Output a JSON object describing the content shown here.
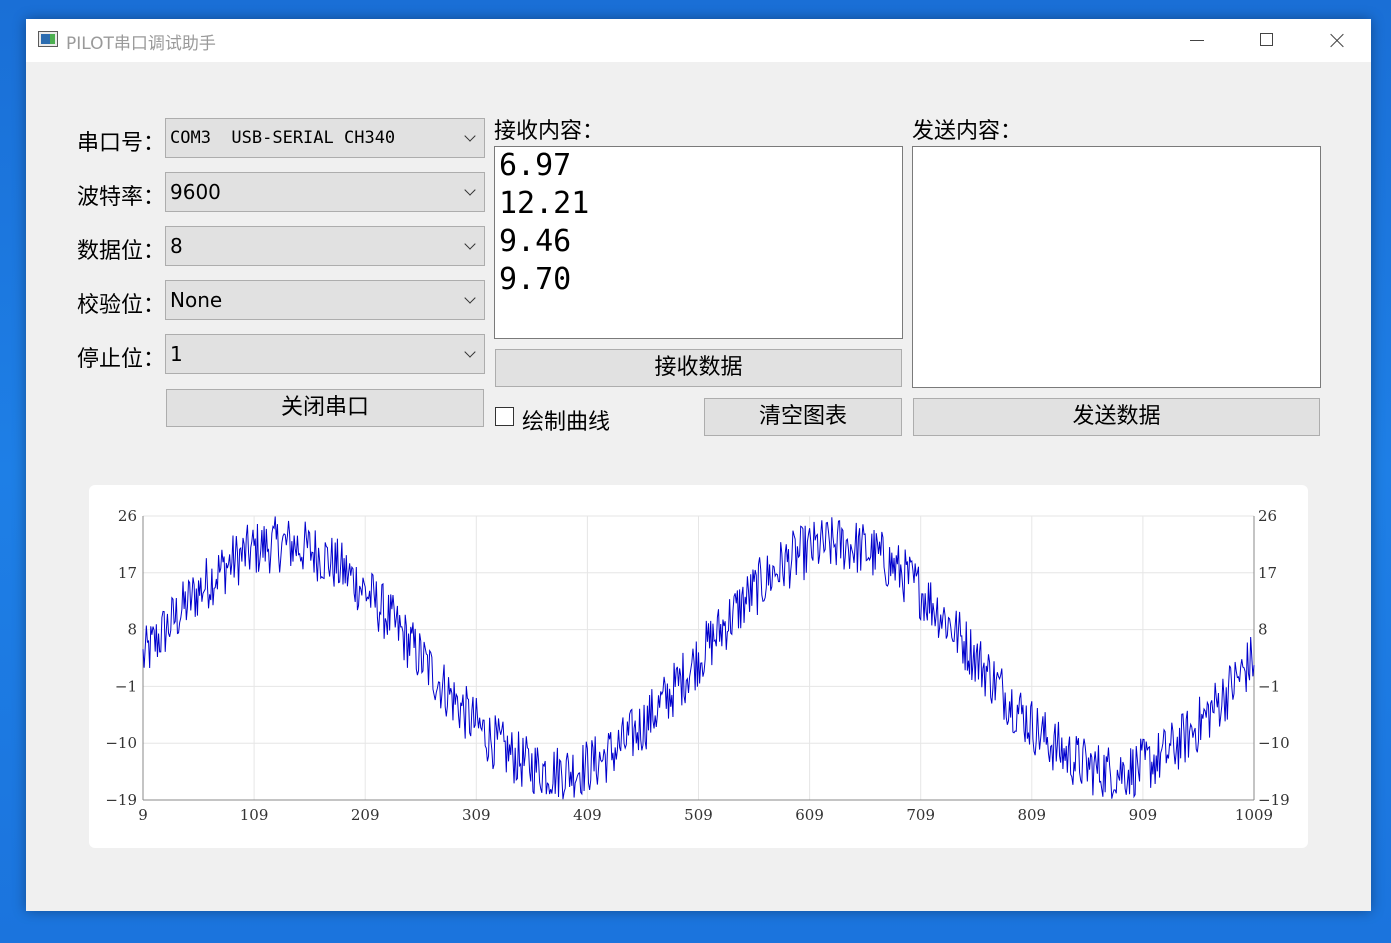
{
  "window": {
    "title": "PILOT串口调试助手"
  },
  "settings": {
    "port": {
      "label": "串口号：",
      "value": "COM3  USB-SERIAL CH340"
    },
    "baud": {
      "label": "波特率：",
      "value": "9600"
    },
    "databits": {
      "label": "数据位：",
      "value": "8"
    },
    "parity": {
      "label": "校验位：",
      "value": "None"
    },
    "stopbits": {
      "label": "停止位：",
      "value": "1"
    },
    "toggle_label": "关闭串口"
  },
  "receive": {
    "label": "接收内容：",
    "lines": [
      "6.97",
      "12.21",
      "9.46",
      "9.70"
    ],
    "button_label": "接收数据"
  },
  "send": {
    "label": "发送内容：",
    "content": "",
    "button_label": "发送数据"
  },
  "plot_checkbox": {
    "label": "绘制曲线",
    "checked": false
  },
  "clear_button_label": "清空图表",
  "chart_data": {
    "type": "line",
    "x_range": [
      9,
      1009
    ],
    "ylim": [
      -19,
      26
    ],
    "x_ticks": [
      "9",
      "109",
      "209",
      "309",
      "409",
      "509",
      "609",
      "709",
      "809",
      "909",
      "1009"
    ],
    "y_ticks_left": [
      "26",
      "17",
      "8",
      "−1",
      "−10",
      "−19"
    ],
    "y_ticks_right": [
      "26",
      "17",
      "8",
      "−1",
      "−10",
      "−19"
    ],
    "grid": true,
    "series": [
      {
        "color": "#0000cc",
        "model": {
          "form": "sine",
          "offset": 3.5,
          "amplitude": 18,
          "period": 500,
          "phase_x": 9,
          "noise_amplitude": 4.5,
          "samples": 1000
        },
        "approx_points": [
          [
            9,
            3
          ],
          [
            134,
            21.5
          ],
          [
            259,
            3.5
          ],
          [
            384,
            -14.5
          ],
          [
            509,
            3.5
          ],
          [
            634,
            21.5
          ],
          [
            759,
            3.5
          ],
          [
            884,
            -14.5
          ],
          [
            1009,
            3
          ]
        ]
      }
    ]
  }
}
